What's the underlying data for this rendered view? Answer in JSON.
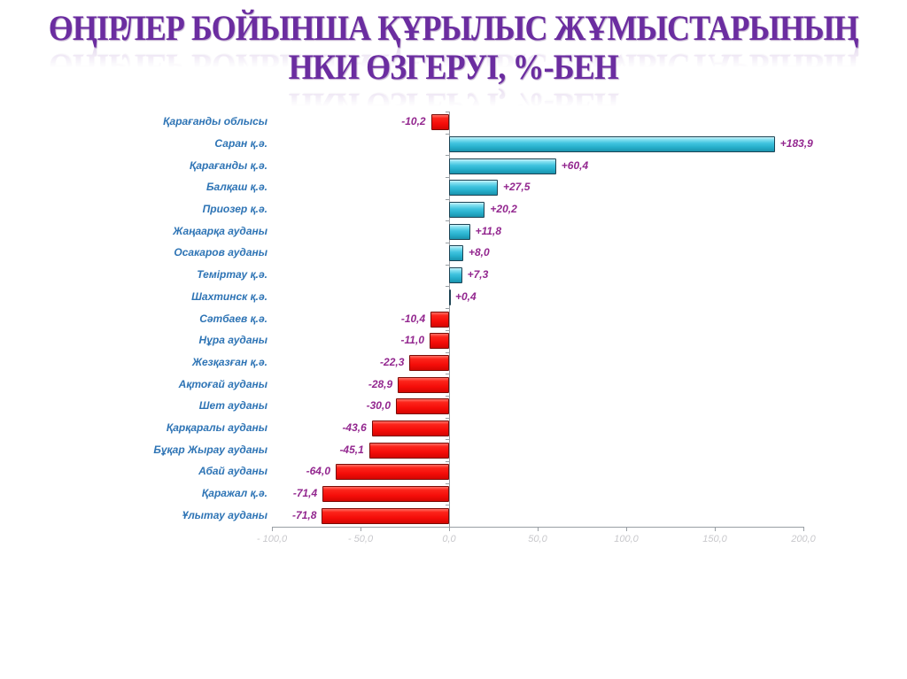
{
  "title": {
    "line1": "ӨҢІРЛЕР БОЙЫНША ҚҰРЫЛЫС ЖҰМЫСТАРЫНЫҢ",
    "line2": "НКИ ӨЗГЕРУІ, %-БЕН"
  },
  "chart_data": {
    "type": "bar",
    "orientation": "horizontal",
    "title": "ӨҢІРЛЕР БОЙЫНША ҚҰРЫЛЫС ЖҰМЫСТАРЫНЫҢ НКИ ӨЗГЕРУІ, %-БЕН",
    "categories": [
      "Қарағанды облысы",
      "Саран қ.ә.",
      "Қарағанды қ.ә.",
      "Балқаш қ.ә.",
      "Приозер қ.ә.",
      "Жаңаарқа ауданы",
      "Осакаров ауданы",
      "Теміртау қ.ә.",
      "Шахтинск қ.ә.",
      "Сәтбаев қ.ә.",
      "Нұра ауданы",
      "Жезқазған қ.ә.",
      "Ақтоғай ауданы",
      "Шет ауданы",
      "Қарқаралы ауданы",
      "Бұқар Жырау ауданы",
      "Абай ауданы",
      "Қаражал қ.ә.",
      "Ұлытау ауданы"
    ],
    "values": [
      -10.2,
      183.9,
      60.4,
      27.5,
      20.2,
      11.8,
      8.0,
      7.3,
      0.4,
      -10.4,
      -11.0,
      -22.3,
      -28.9,
      -30.0,
      -43.6,
      -45.1,
      -64.0,
      -71.4,
      -71.8
    ],
    "value_labels": [
      "-10,2",
      "+183,9",
      "+60,4",
      "+27,5",
      "+20,2",
      "+11,8",
      "+8,0",
      "+7,3",
      "+0,4",
      "-10,4",
      "-11,0",
      "-22,3",
      "-28,9",
      "-30,0",
      "-43,6",
      "-45,1",
      "-64,0",
      "-71,4",
      "-71,8"
    ],
    "xlim": [
      -100,
      200
    ],
    "x_ticks": [
      -100,
      -50,
      0,
      50,
      100,
      150,
      200
    ],
    "x_tick_labels": [
      "- 100,0",
      "- 50,0",
      "0,0",
      "50,0",
      "100,0",
      "150,0",
      "200,0"
    ],
    "grid": false,
    "legend": false,
    "colors": {
      "positive_bar": "#2fb9d6",
      "negative_bar": "#f50d09",
      "category_label": "#2e74b5",
      "value_label": "#93278f",
      "title": "#6b2da0",
      "axis": "#999fa4",
      "tick_label": "#c8c8cc"
    }
  }
}
